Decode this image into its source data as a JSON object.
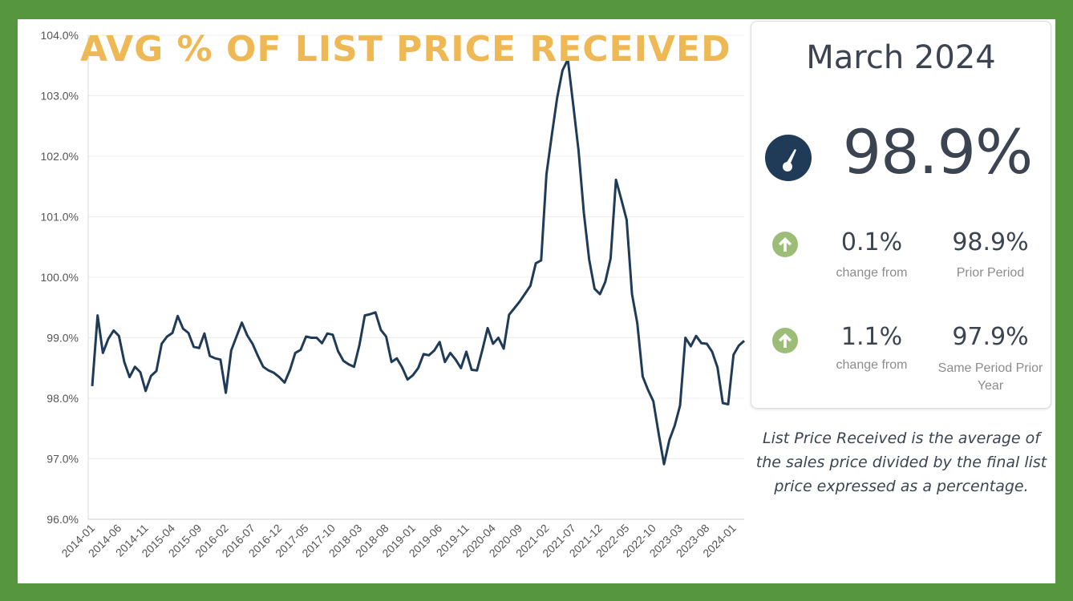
{
  "theme": {
    "frame_color": "#55963f",
    "title_color": "#eeb955",
    "line_color": "#1f3b57",
    "text_color": "#3b4450",
    "label_gray": "#8c8c8c",
    "arrow_color": "#9bbd76"
  },
  "chart_data": {
    "type": "line",
    "title": "AVG % OF LIST PRICE RECEIVED",
    "xlabel": "",
    "ylabel": "",
    "ylim": [
      96.0,
      104.0
    ],
    "y_ticks": [
      "96.0%",
      "97.0%",
      "98.0%",
      "99.0%",
      "100.0%",
      "101.0%",
      "102.0%",
      "103.0%",
      "104.0%"
    ],
    "x_ticks": [
      "2014-01",
      "2014-06",
      "2014-11",
      "2015-04",
      "2015-09",
      "2016-02",
      "2016-07",
      "2016-12",
      "2017-05",
      "2017-10",
      "2018-03",
      "2018-08",
      "2019-01",
      "2019-06",
      "2019-11",
      "2020-04",
      "2020-09",
      "2021-02",
      "2021-07",
      "2021-12",
      "2022-05",
      "2022-10",
      "2023-03",
      "2023-08",
      "2024-01"
    ],
    "grid": "horizontal",
    "legend": "none",
    "x_start": "2014-01",
    "x_end": "2024-03",
    "series": [
      {
        "name": "",
        "values": [
          98.2,
          99.37,
          98.75,
          98.98,
          99.12,
          99.03,
          98.6,
          98.35,
          98.52,
          98.43,
          98.12,
          98.37,
          98.45,
          98.9,
          99.02,
          99.08,
          99.36,
          99.15,
          99.08,
          98.85,
          98.83,
          99.07,
          98.7,
          98.66,
          98.64,
          98.09,
          98.79,
          99.02,
          99.25,
          99.04,
          98.9,
          98.7,
          98.52,
          98.46,
          98.42,
          98.35,
          98.26,
          98.47,
          98.75,
          98.8,
          99.02,
          99.0,
          99.0,
          98.91,
          99.07,
          99.05,
          98.78,
          98.62,
          98.56,
          98.52,
          98.88,
          99.37,
          99.39,
          99.42,
          99.13,
          99.02,
          98.6,
          98.66,
          98.51,
          98.31,
          98.38,
          98.5,
          98.73,
          98.71,
          98.79,
          98.93,
          98.6,
          98.75,
          98.64,
          98.5,
          98.77,
          98.47,
          98.46,
          98.8,
          99.16,
          98.9,
          99.0,
          98.82,
          99.38,
          99.49,
          99.6,
          99.73,
          99.86,
          100.23,
          100.28,
          101.7,
          102.35,
          102.97,
          103.42,
          103.6,
          102.85,
          102.1,
          101.06,
          100.29,
          99.81,
          99.72,
          99.92,
          100.31,
          101.61,
          101.29,
          100.95,
          99.72,
          99.24,
          98.36,
          98.14,
          97.95,
          97.41,
          96.91,
          97.31,
          97.55,
          97.88,
          99.0,
          98.86,
          99.03,
          98.91,
          98.9,
          98.77,
          98.51,
          97.92,
          97.9,
          98.72,
          98.87,
          98.95
        ]
      }
    ]
  },
  "card": {
    "period": "March 2024",
    "main_value": "98.9%",
    "gauge_icon": "gauge-icon",
    "arrow_icon": "arrow-up-icon",
    "rows": [
      {
        "change_value": "0.1%",
        "change_label": "change from",
        "compare_value": "98.9%",
        "compare_label": "Prior Period"
      },
      {
        "change_value": "1.1%",
        "change_label": "change from",
        "compare_value": "97.9%",
        "compare_label": "Same Period Prior Year"
      }
    ]
  },
  "footnote": "List Price Received is the average of the sales price divided by the final list price expressed as a percentage."
}
